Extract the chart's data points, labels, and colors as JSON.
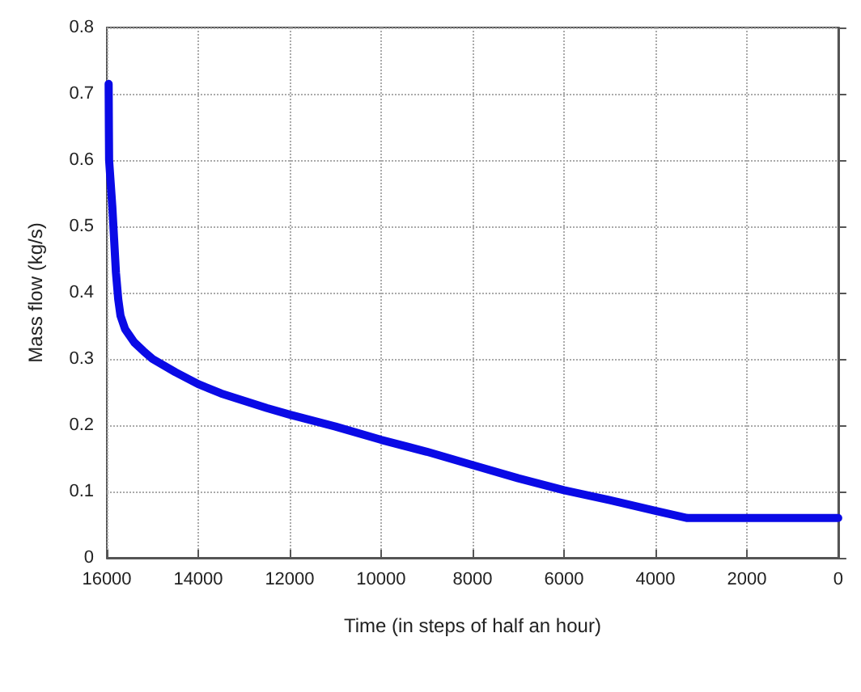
{
  "chart_data": {
    "type": "line",
    "xlabel": "Time (in steps of half an hour)",
    "ylabel": "Mass flow (kg/s)",
    "x": [
      15960,
      15955,
      15950,
      15920,
      15880,
      15840,
      15800,
      15750,
      15700,
      15600,
      15400,
      15200,
      15000,
      14500,
      14000,
      13500,
      13000,
      12500,
      12000,
      11000,
      10000,
      9000,
      8000,
      7000,
      6000,
      5000,
      4000,
      3300,
      2000,
      0
    ],
    "series": [
      {
        "color": "#0a0ae6",
        "values": [
          0.715,
          0.65,
          0.6,
          0.57,
          0.53,
          0.48,
          0.43,
          0.39,
          0.365,
          0.345,
          0.325,
          0.312,
          0.3,
          0.28,
          0.262,
          0.248,
          0.237,
          0.226,
          0.216,
          0.198,
          0.178,
          0.16,
          0.14,
          0.12,
          0.102,
          0.087,
          0.071,
          0.06,
          0.06,
          0.06
        ]
      }
    ],
    "xlim": [
      16000,
      0
    ],
    "xticks": [
      16000,
      14000,
      12000,
      10000,
      8000,
      6000,
      4000,
      2000,
      0
    ],
    "ylim": [
      0,
      0.8
    ],
    "yticks": [
      0,
      0.1,
      0.2,
      0.3,
      0.4,
      0.5,
      0.6,
      0.7,
      0.8
    ],
    "grid": true,
    "marker": "none",
    "line_style": "solid"
  }
}
